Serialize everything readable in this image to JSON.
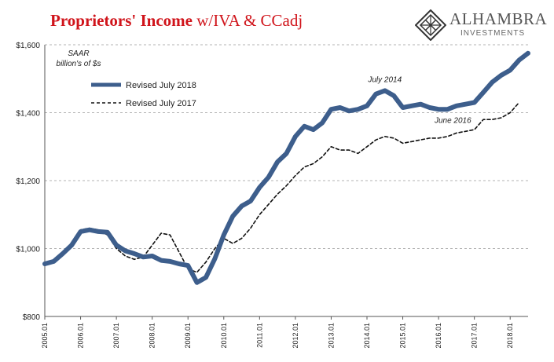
{
  "header": {
    "title_main": "Proprietors' Income",
    "title_rest": " w/IVA & CCadj"
  },
  "logo": {
    "name": "ALHAMBRA",
    "subtitle": "INVESTMENTS"
  },
  "chart_data": {
    "type": "line",
    "title": "Proprietors' Income w/IVA & CCadj",
    "ylabel": "",
    "xlabel": "",
    "unit_note_line1": "SAAR",
    "unit_note_line2": "billion's of $s",
    "ylim": [
      800,
      1600
    ],
    "yticks": [
      800,
      1000,
      1200,
      1400,
      1600
    ],
    "ytick_labels": [
      "$800",
      "$1,000",
      "$1,200",
      "$1,400",
      "$1,600"
    ],
    "xlim": [
      2005.0,
      2018.5
    ],
    "xticks": [
      2005,
      2006,
      2007,
      2008,
      2009,
      2010,
      2011,
      2012,
      2013,
      2014,
      2015,
      2016,
      2017,
      2018
    ],
    "xtick_labels": [
      "2005.01",
      "2006.01",
      "2007.01",
      "2008.01",
      "2009.01",
      "2010.01",
      "2011.01",
      "2012.01",
      "2013.01",
      "2014.01",
      "2015.01",
      "2016.01",
      "2017.01",
      "2018.01"
    ],
    "grid": "horizontal dashed",
    "legend_position": "top-left",
    "annotations": [
      {
        "text": "July 2014",
        "x": 2014.5,
        "y": 1490
      },
      {
        "text": "June 2016",
        "x": 2016.4,
        "y": 1370
      }
    ],
    "series": [
      {
        "name": "Revised July 2018",
        "style": "solid",
        "color": "#3d5e8c",
        "x": [
          2005.0,
          2005.25,
          2005.5,
          2005.75,
          2006.0,
          2006.25,
          2006.5,
          2006.75,
          2007.0,
          2007.25,
          2007.5,
          2007.75,
          2008.0,
          2008.25,
          2008.5,
          2008.75,
          2009.0,
          2009.25,
          2009.5,
          2009.75,
          2010.0,
          2010.25,
          2010.5,
          2010.75,
          2011.0,
          2011.25,
          2011.5,
          2011.75,
          2012.0,
          2012.25,
          2012.5,
          2012.75,
          2013.0,
          2013.25,
          2013.5,
          2013.75,
          2014.0,
          2014.25,
          2014.5,
          2014.75,
          2015.0,
          2015.25,
          2015.5,
          2015.75,
          2016.0,
          2016.25,
          2016.5,
          2016.75,
          2017.0,
          2017.25,
          2017.5,
          2017.75,
          2018.0,
          2018.25,
          2018.5
        ],
        "values": [
          955,
          962,
          985,
          1010,
          1050,
          1055,
          1050,
          1048,
          1010,
          993,
          985,
          975,
          978,
          965,
          962,
          955,
          950,
          900,
          915,
          970,
          1040,
          1095,
          1125,
          1140,
          1180,
          1210,
          1255,
          1280,
          1330,
          1360,
          1350,
          1370,
          1410,
          1415,
          1405,
          1410,
          1420,
          1455,
          1465,
          1450,
          1415,
          1420,
          1425,
          1415,
          1410,
          1410,
          1420,
          1425,
          1430,
          1460,
          1490,
          1510,
          1525,
          1555,
          1575
        ]
      },
      {
        "name": "Revised July 2017",
        "style": "dashed",
        "color": "#111111",
        "x": [
          2005.0,
          2005.25,
          2005.5,
          2005.75,
          2006.0,
          2006.25,
          2006.5,
          2006.75,
          2007.0,
          2007.25,
          2007.5,
          2007.75,
          2008.0,
          2008.25,
          2008.5,
          2008.75,
          2009.0,
          2009.25,
          2009.5,
          2009.75,
          2010.0,
          2010.25,
          2010.5,
          2010.75,
          2011.0,
          2011.25,
          2011.5,
          2011.75,
          2012.0,
          2012.25,
          2012.5,
          2012.75,
          2013.0,
          2013.25,
          2013.5,
          2013.75,
          2014.0,
          2014.25,
          2014.5,
          2014.75,
          2015.0,
          2015.25,
          2015.5,
          2015.75,
          2016.0,
          2016.25,
          2016.5,
          2016.75,
          2017.0,
          2017.25,
          2017.5,
          2017.75,
          2018.0,
          2018.25
        ],
        "values": [
          950,
          960,
          985,
          1015,
          1055,
          1060,
          1055,
          1040,
          1000,
          978,
          968,
          975,
          1010,
          1045,
          1040,
          990,
          940,
          930,
          960,
          1000,
          1030,
          1015,
          1030,
          1060,
          1100,
          1130,
          1160,
          1185,
          1215,
          1240,
          1250,
          1270,
          1300,
          1290,
          1290,
          1280,
          1300,
          1320,
          1330,
          1325,
          1310,
          1315,
          1320,
          1325,
          1325,
          1330,
          1340,
          1345,
          1350,
          1380,
          1380,
          1385,
          1400,
          1430
        ]
      }
    ]
  }
}
